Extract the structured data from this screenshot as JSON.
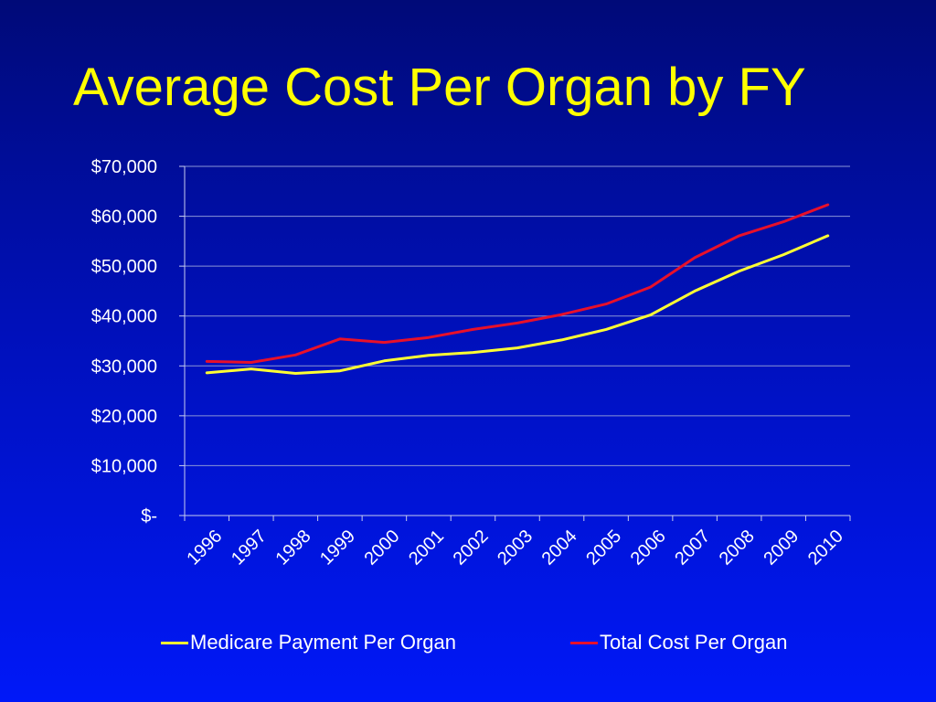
{
  "chart_data": {
    "type": "line",
    "title": "Average Cost Per Organ by FY",
    "xlabel": "",
    "ylabel": "",
    "categories": [
      "1996",
      "1997",
      "1998",
      "1999",
      "2000",
      "2001",
      "2002",
      "2003",
      "2004",
      "2005",
      "2006",
      "2007",
      "2008",
      "2009",
      "2010"
    ],
    "ylim": [
      0,
      70000
    ],
    "yticks": [
      0,
      10000,
      20000,
      30000,
      40000,
      50000,
      60000,
      70000
    ],
    "ytick_labels": [
      "$-",
      "$10,000",
      "$20,000",
      "$30,000",
      "$40,000",
      "$50,000",
      "$60,000",
      "$70,000"
    ],
    "grid": true,
    "legend_position": "bottom",
    "series": [
      {
        "name": "Medicare Payment Per Organ",
        "color": "#ffff33",
        "values": [
          28600,
          29400,
          28500,
          29000,
          31000,
          32100,
          32700,
          33600,
          35200,
          37300,
          40200,
          45000,
          49000,
          52300,
          56100
        ]
      },
      {
        "name": "Total Cost Per Organ",
        "color": "#e8102a",
        "values": [
          30900,
          30700,
          32200,
          35400,
          34700,
          35700,
          37300,
          38600,
          40300,
          42400,
          45800,
          51700,
          56100,
          58900,
          62300
        ]
      }
    ]
  },
  "colors": {
    "title": "#ffff00",
    "text": "#ffffff",
    "grid": "#8a95d6",
    "axis": "#c8ccf0"
  }
}
